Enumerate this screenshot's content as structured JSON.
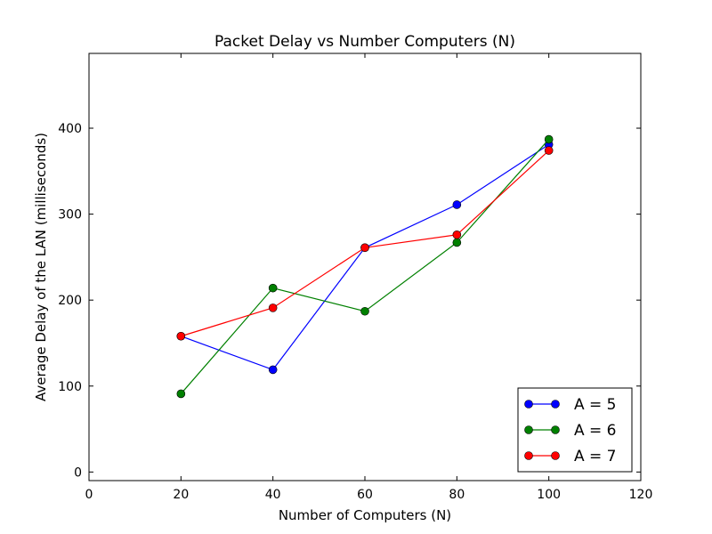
{
  "chart_data": {
    "type": "line",
    "title": "Packet Delay vs Number Computers (N)",
    "xlabel": "Number of Computers (N)",
    "ylabel": "Average Delay of the LAN (milliseconds)",
    "xlim": [
      0,
      120
    ],
    "ylim": [
      -10,
      487
    ],
    "xticks": [
      0,
      20,
      40,
      60,
      80,
      100,
      120
    ],
    "yticks": [
      0,
      100,
      200,
      300,
      400
    ],
    "grid": false,
    "legend_position": "bottom-right",
    "x": [
      20,
      40,
      60,
      80,
      100
    ],
    "series": [
      {
        "name": "A = 5",
        "color": "#0000ff",
        "marker": "circle",
        "values": [
          158,
          119,
          261,
          311,
          381
        ]
      },
      {
        "name": "A = 6",
        "color": "#008000",
        "marker": "circle",
        "values": [
          91,
          214,
          187,
          267,
          387
        ]
      },
      {
        "name": "A = 7",
        "color": "#ff0000",
        "marker": "circle",
        "values": [
          158,
          191,
          261,
          276,
          374
        ]
      }
    ]
  }
}
